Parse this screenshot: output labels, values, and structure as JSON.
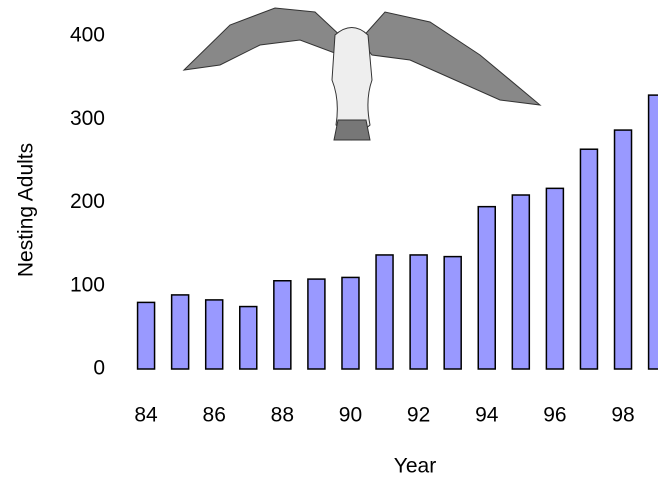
{
  "chart_data": {
    "type": "bar",
    "x": [
      84,
      85,
      86,
      87,
      88,
      89,
      90,
      91,
      92,
      93,
      94,
      95,
      96,
      97,
      98,
      99
    ],
    "values": [
      80,
      89,
      83,
      75,
      106,
      108,
      110,
      137,
      137,
      135,
      195,
      209,
      217,
      264,
      287,
      329
    ],
    "color": "#9999ff",
    "xlim": [
      83,
      99.1
    ],
    "xticks": [
      84,
      86,
      88,
      90,
      92,
      94,
      96,
      98
    ],
    "ylim": [
      0,
      400
    ],
    "yticks": [
      0,
      100,
      200,
      300,
      400
    ],
    "xlabel": "Year",
    "ylabel": "Nesting Adults",
    "grid": false
  }
}
